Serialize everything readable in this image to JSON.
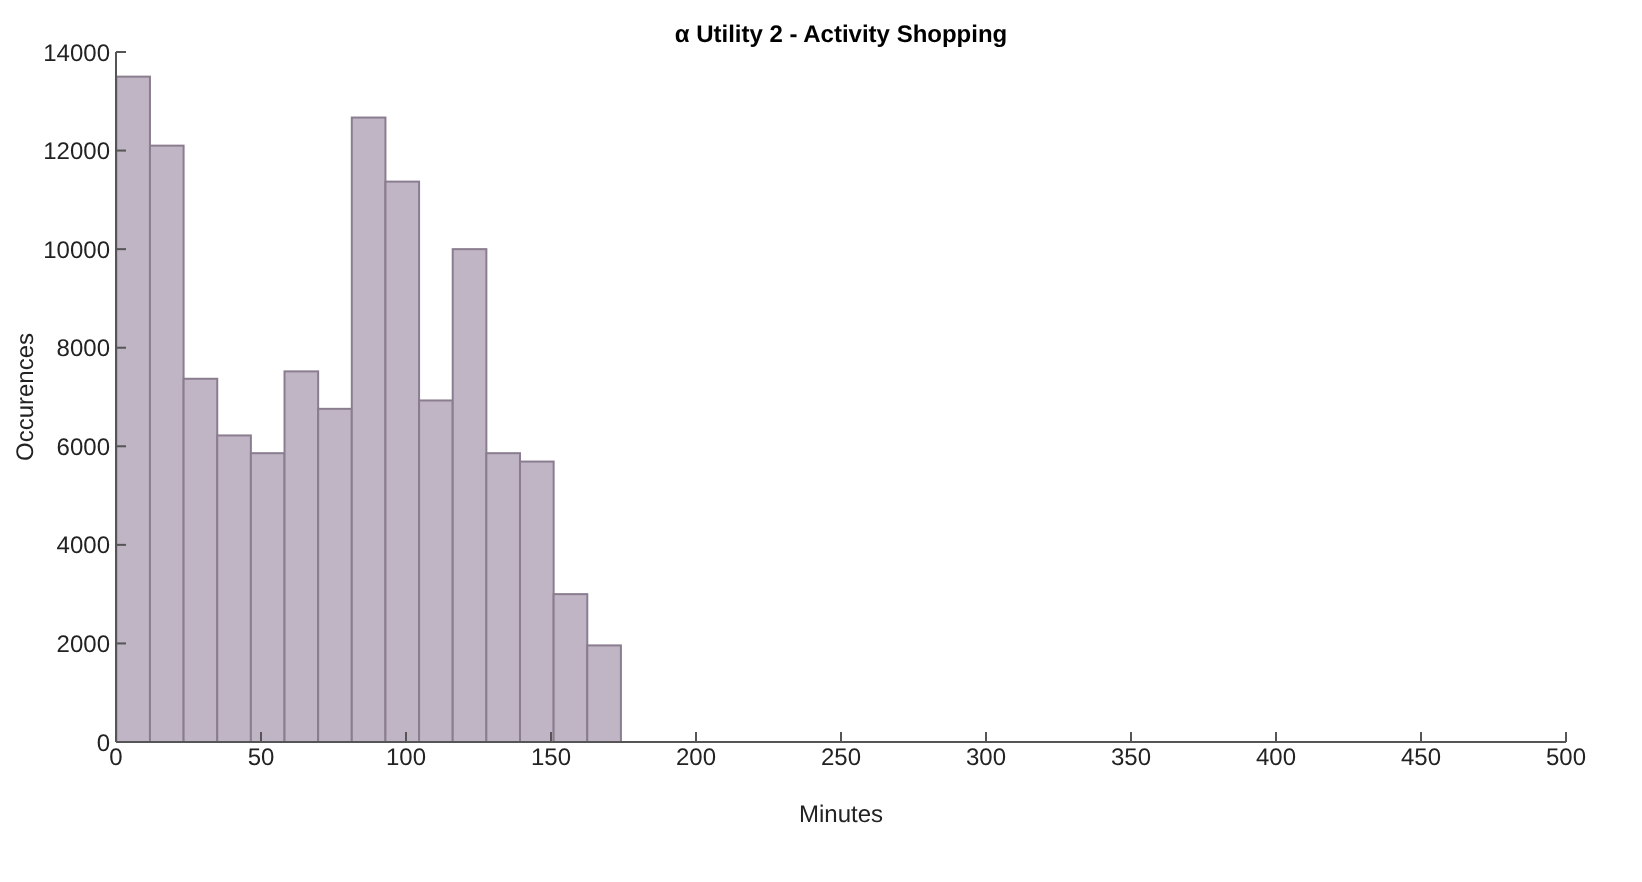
{
  "chart_data": {
    "type": "histogram",
    "title": "α Utility 2 - Activity Shopping",
    "xlabel": "Minutes",
    "ylabel": "Occurences",
    "bins": [
      0,
      11.6,
      23.2,
      34.8,
      46.4,
      58,
      69.6,
      81.2,
      92.8,
      104.4,
      116,
      127.6,
      139.2,
      150.8,
      162.4,
      174
    ],
    "values": [
      13500,
      12100,
      7370,
      6220,
      5860,
      7520,
      6760,
      12670,
      11370,
      6930,
      10000,
      5860,
      5690,
      3000,
      1960
    ],
    "color": "#c0b5c4",
    "xlim": [
      0,
      500
    ],
    "xticks": [
      0,
      50,
      100,
      150,
      200,
      250,
      300,
      350,
      400,
      450,
      500
    ],
    "ylim": [
      0,
      14000
    ],
    "yticks": [
      0,
      2000,
      4000,
      6000,
      8000,
      10000,
      12000,
      14000
    ],
    "grid": false
  }
}
